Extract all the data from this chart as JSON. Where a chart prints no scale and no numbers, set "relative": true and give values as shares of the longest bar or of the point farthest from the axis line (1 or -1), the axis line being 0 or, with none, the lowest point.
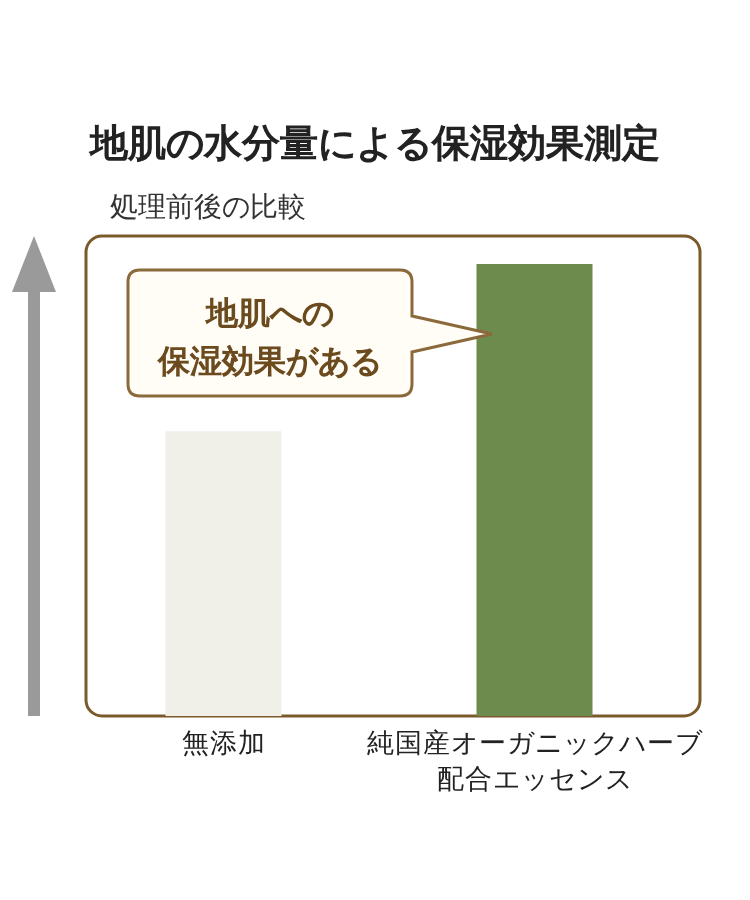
{
  "chart_data": {
    "type": "bar",
    "title": "地肌の水分量による保湿効果測定",
    "ylabel": "処理前後の比較",
    "categories": [
      "無添加",
      "純国産オーガニックハーブ配合エッセンス"
    ],
    "relative": true,
    "series": [
      {
        "values": [
          0.63,
          1
        ],
        "colors": [
          "#f0f0e8",
          "#6e8b4e"
        ]
      }
    ],
    "annotations": [
      "地肌への",
      "保湿効果がある"
    ]
  }
}
